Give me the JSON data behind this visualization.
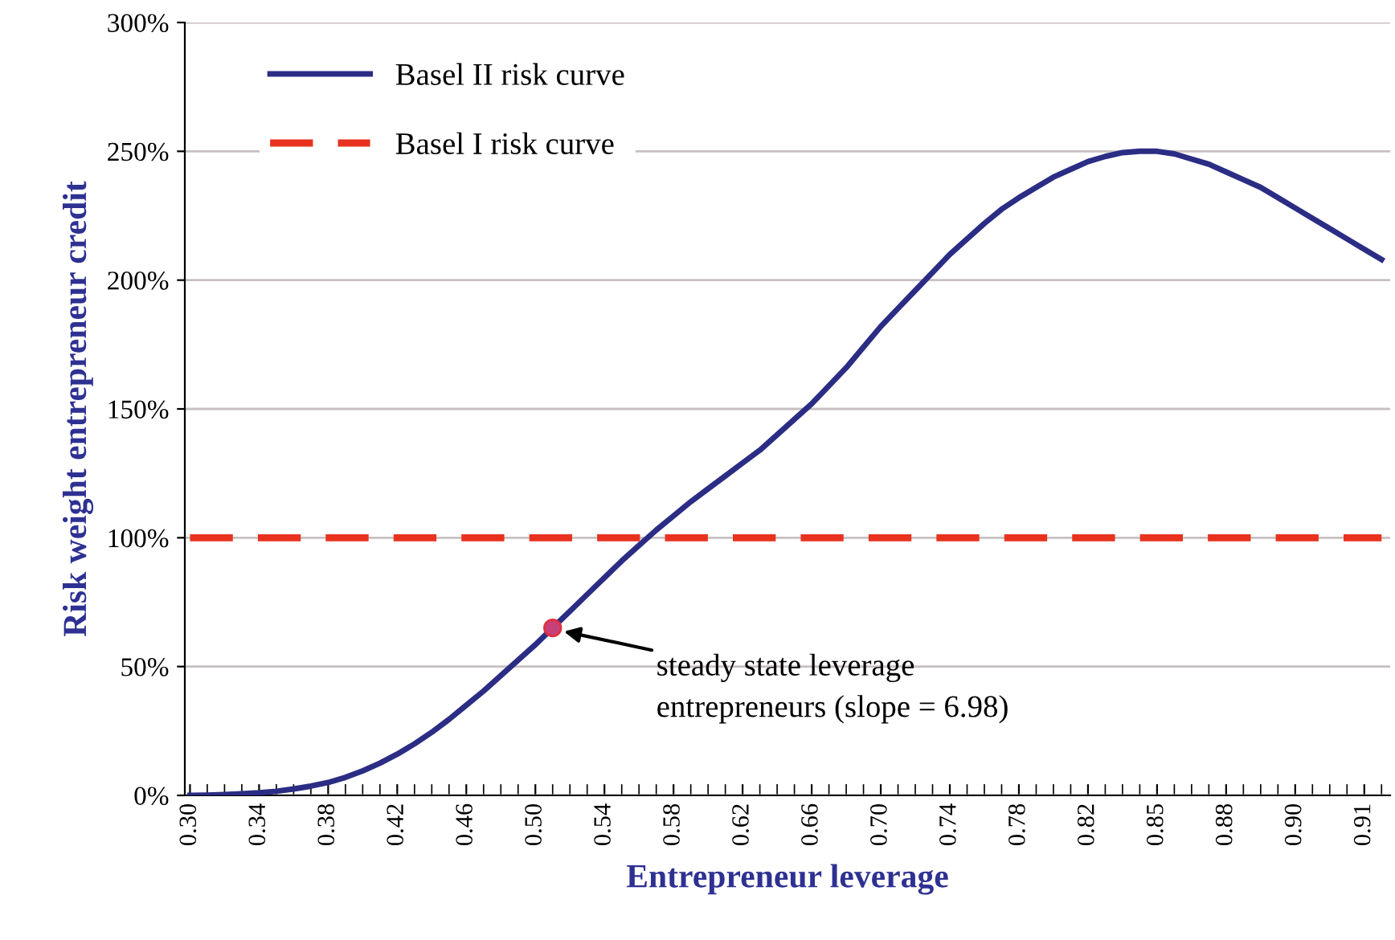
{
  "chart_data": {
    "type": "line",
    "xlabel": "Entrepreneur leverage",
    "ylabel": "Risk weight entrepreneur credit",
    "categories": [
      "0.30",
      null,
      null,
      null,
      "0.34",
      null,
      null,
      null,
      "0.38",
      null,
      null,
      null,
      "0.42",
      null,
      null,
      null,
      "0.46",
      null,
      null,
      null,
      "0.50",
      null,
      null,
      null,
      "0.54",
      null,
      null,
      null,
      "0.58",
      null,
      null,
      null,
      "0.62",
      null,
      null,
      null,
      "0.66",
      null,
      null,
      null,
      "0.70",
      null,
      null,
      null,
      "0.74",
      null,
      null,
      null,
      "0.78",
      null,
      null,
      null,
      "0.82",
      null,
      null,
      null,
      "0.85",
      null,
      null,
      null,
      "0.88",
      null,
      null,
      null,
      "0.90",
      null,
      null,
      null,
      "0.91",
      null
    ],
    "series": [
      {
        "name": "Basel II risk curve",
        "color": "#2b2d84",
        "line_style": "solid",
        "values": [
          0,
          0.1,
          0.3,
          0.6,
          1,
          1.6,
          2.5,
          3.6,
          5,
          7,
          9.5,
          12.5,
          16,
          20,
          24.5,
          29.5,
          35,
          40.5,
          46.5,
          52.5,
          58.5,
          65,
          71.5,
          78,
          84.5,
          91,
          97,
          103,
          108.5,
          114,
          119,
          124,
          129,
          134,
          140,
          146,
          152,
          159,
          166,
          174,
          182,
          189,
          196,
          203,
          210,
          216,
          222,
          227.5,
          232,
          236,
          240,
          243,
          246,
          248,
          249.5,
          250,
          250,
          249,
          247,
          245,
          242,
          239,
          236,
          232,
          228,
          224,
          220,
          216,
          212,
          208
        ]
      },
      {
        "name": "Basel I risk curve",
        "color": "#e8321e",
        "line_style": "dashed",
        "values": [
          100,
          100,
          100,
          100,
          100,
          100,
          100,
          100,
          100,
          100,
          100,
          100,
          100,
          100,
          100,
          100,
          100,
          100,
          100,
          100,
          100,
          100,
          100,
          100,
          100,
          100,
          100,
          100,
          100,
          100,
          100,
          100,
          100,
          100,
          100,
          100,
          100,
          100,
          100,
          100,
          100,
          100,
          100,
          100,
          100,
          100,
          100,
          100,
          100,
          100,
          100,
          100,
          100,
          100,
          100,
          100,
          100,
          100,
          100,
          100,
          100,
          100,
          100,
          100,
          100,
          100,
          100,
          100,
          100,
          100
        ]
      },
      {
        "type": "scatter",
        "color": "#c8407a",
        "values": [
          null,
          null,
          null,
          null,
          null,
          null,
          null,
          null,
          null,
          null,
          null,
          null,
          null,
          null,
          null,
          null,
          null,
          null,
          null,
          null,
          null,
          65,
          null,
          null,
          null,
          null,
          null,
          null,
          null,
          null,
          null,
          null,
          null,
          null,
          null,
          null,
          null,
          null,
          null,
          null,
          null,
          null,
          null,
          null,
          null,
          null,
          null,
          null,
          null,
          null,
          null,
          null,
          null,
          null,
          null,
          null,
          null,
          null,
          null,
          null,
          null,
          null,
          null,
          null,
          null,
          null,
          null,
          null,
          null,
          null
        ]
      }
    ],
    "annotations": [
      "steady state leverage\nentrepreneurs (slope = 6.98)"
    ],
    "ylim": [
      0,
      300
    ],
    "yticks": [
      {
        "value": 0,
        "label": "0%"
      },
      {
        "value": 50,
        "label": "50%"
      },
      {
        "value": 100,
        "label": "100%"
      },
      {
        "value": 150,
        "label": "150%"
      },
      {
        "value": 200,
        "label": "200%"
      },
      {
        "value": 250,
        "label": "250%"
      },
      {
        "value": 300,
        "label": "300%"
      }
    ],
    "grid": "y",
    "legend": "top left"
  }
}
